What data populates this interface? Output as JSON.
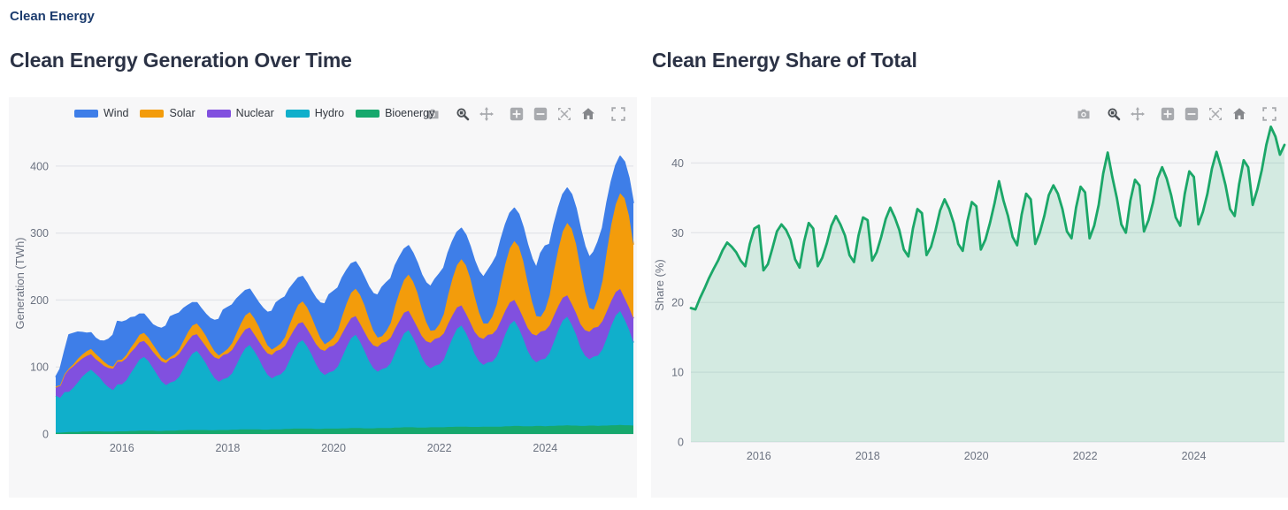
{
  "page": {
    "breadcrumb": "Clean Energy"
  },
  "modebar": {
    "icons": [
      "camera-icon",
      "zoom-icon",
      "pan-icon",
      "zoom-in-icon",
      "zoom-out-icon",
      "autoscale-icon",
      "home-icon",
      "fullscreen-icon"
    ],
    "active_tool": "zoom"
  },
  "chart_data": [
    {
      "type": "area",
      "stacked": true,
      "title": "Clean Energy Generation Over Time",
      "xlabel": "",
      "ylabel": "Generation (TWh)",
      "x_range": {
        "start": "2014-10",
        "end": "2025-09",
        "freq": "monthly"
      },
      "x_tick_labels": [
        "2016",
        "2018",
        "2020",
        "2022",
        "2024"
      ],
      "ylim": [
        0,
        450
      ],
      "yticks": [
        0,
        100,
        200,
        300,
        400
      ],
      "grid": true,
      "legend_position": "top-left",
      "legend": [
        {
          "label": "Wind",
          "color": "#3e7ee8"
        },
        {
          "label": "Solar",
          "color": "#f39c0b"
        },
        {
          "label": "Nuclear",
          "color": "#8150df"
        },
        {
          "label": "Hydro",
          "color": "#10afcb"
        },
        {
          "label": "Bioenergy",
          "color": "#16a86d"
        }
      ],
      "series": [
        {
          "name": "Bioenergy",
          "color": "#16a86d",
          "values": [
            2,
            2,
            2.5,
            3,
            3,
            3,
            3.5,
            3.5,
            4,
            4,
            4,
            3.5,
            3.5,
            3.5,
            4,
            4,
            4,
            4.5,
            4.5,
            5,
            5,
            5,
            5,
            4.5,
            4.5,
            5,
            5,
            5,
            5.5,
            5.5,
            6,
            6,
            6,
            6,
            6,
            5.5,
            5.5,
            6,
            6,
            6,
            6.5,
            6.5,
            7,
            7,
            7,
            7,
            7,
            6.5,
            6.5,
            7,
            7,
            7,
            7.5,
            7.5,
            8,
            8,
            8,
            8,
            8,
            7.5,
            7.5,
            8,
            8,
            8,
            8,
            8.5,
            8.5,
            9,
            9,
            9,
            8.5,
            8.5,
            8.5,
            9,
            9,
            9,
            9,
            9.5,
            9.5,
            10,
            10,
            10,
            9.5,
            9.5,
            9.5,
            10,
            10,
            10,
            10,
            10.5,
            10.5,
            11,
            11,
            11,
            10.5,
            10.5,
            10.5,
            11,
            11,
            11,
            11,
            11,
            11.5,
            11.5,
            12,
            12,
            11.5,
            11.5,
            11.5,
            12,
            12,
            11.5,
            12,
            12,
            12.5,
            12.5,
            13,
            12.5,
            12.5,
            12,
            12,
            12.5,
            12.5,
            12,
            12.5,
            12.5,
            13,
            13,
            13.5,
            13,
            13,
            12.5
          ]
        },
        {
          "name": "Hydro",
          "color": "#10afcb",
          "values": [
            55,
            52,
            60,
            60,
            66,
            74,
            82,
            88,
            92,
            86,
            80,
            72,
            66,
            62,
            70,
            70,
            76,
            86,
            96,
            106,
            110,
            104,
            94,
            84,
            74,
            68,
            72,
            74,
            80,
            92,
            104,
            114,
            118,
            110,
            100,
            88,
            78,
            72,
            76,
            78,
            84,
            97,
            110,
            121,
            126,
            117,
            106,
            93,
            82,
            76,
            80,
            82,
            88,
            102,
            116,
            128,
            132,
            123,
            111,
            97,
            86,
            80,
            84,
            86,
            93,
            107,
            122,
            134,
            139,
            129,
            116,
            101,
            90,
            84,
            88,
            90,
            97,
            112,
            127,
            140,
            145,
            134,
            121,
            105,
            94,
            88,
            92,
            94,
            101,
            117,
            133,
            146,
            151,
            140,
            126,
            109,
            98,
            92,
            96,
            97,
            105,
            121,
            138,
            152,
            157,
            146,
            131,
            113,
            101,
            95,
            99,
            101,
            109,
            126,
            143,
            157,
            162,
            151,
            136,
            117,
            105,
            99,
            103,
            105,
            114,
            131,
            149,
            164,
            170,
            158,
            143,
            124
          ]
        },
        {
          "name": "Nuclear",
          "color": "#8150df",
          "values": [
            12,
            18,
            26,
            33,
            32,
            30,
            27,
            25,
            23,
            22,
            23,
            26,
            29,
            32,
            34,
            34,
            33,
            31,
            28,
            26,
            24,
            23,
            24,
            27,
            30,
            33,
            35,
            35,
            34,
            32,
            29,
            27,
            25,
            24,
            25,
            28,
            31,
            34,
            36,
            36,
            35,
            33,
            30,
            28,
            26,
            25,
            26,
            29,
            32,
            35,
            37,
            37,
            36,
            34,
            31,
            29,
            27,
            26,
            27,
            30,
            33,
            36,
            38,
            38,
            37,
            35,
            32,
            30,
            28,
            27,
            28,
            31,
            34,
            37,
            39,
            39,
            38,
            36,
            33,
            31,
            29,
            28,
            29,
            32,
            35,
            38,
            40,
            40,
            39,
            37,
            34,
            32,
            30,
            29,
            30,
            33,
            36,
            39,
            41,
            41,
            40,
            38,
            35,
            33,
            31,
            30,
            31,
            34,
            37,
            40,
            42,
            42,
            41,
            39,
            36,
            34,
            32,
            31,
            32,
            35,
            38,
            41,
            43,
            43,
            42,
            40,
            37,
            35,
            33,
            32,
            33,
            36
          ]
        },
        {
          "name": "Solar",
          "color": "#f39c0b",
          "values": [
            2,
            1,
            1,
            2,
            3,
            5,
            6,
            7,
            8,
            8,
            7,
            6,
            4,
            3,
            2,
            3,
            5,
            7,
            9,
            11,
            12,
            12,
            11,
            9,
            6,
            4,
            3,
            5,
            7,
            10,
            13,
            15,
            16,
            17,
            16,
            13,
            9,
            5,
            4,
            7,
            10,
            14,
            18,
            21,
            23,
            24,
            22,
            18,
            12,
            8,
            6,
            9,
            13,
            19,
            24,
            28,
            31,
            32,
            29,
            24,
            17,
            10,
            8,
            12,
            17,
            26,
            33,
            38,
            41,
            43,
            40,
            32,
            22,
            14,
            10,
            16,
            22,
            34,
            43,
            49,
            54,
            56,
            52,
            41,
            29,
            18,
            13,
            20,
            29,
            43,
            55,
            63,
            69,
            72,
            66,
            53,
            37,
            23,
            17,
            26,
            37,
            55,
            70,
            81,
            88,
            92,
            85,
            68,
            48,
            29,
            22,
            31,
            45,
            67,
            85,
            99,
            108,
            112,
            103,
            83,
            58,
            36,
            27,
            42,
            60,
            90,
            114,
            131,
            143,
            149,
            137,
            110
          ]
        },
        {
          "name": "Wind",
          "color": "#3e7ee8",
          "values": [
            14,
            24,
            34,
            50,
            46,
            40,
            33,
            27,
            24,
            23,
            25,
            31,
            39,
            47,
            58,
            56,
            51,
            45,
            37,
            31,
            28,
            27,
            29,
            35,
            43,
            51,
            60,
            59,
            54,
            48,
            40,
            34,
            31,
            30,
            32,
            38,
            46,
            54,
            63,
            62,
            57,
            51,
            43,
            37,
            34,
            33,
            35,
            41,
            49,
            57,
            66,
            66,
            60,
            54,
            46,
            40,
            37,
            36,
            38,
            44,
            52,
            60,
            70,
            69,
            63,
            57,
            49,
            43,
            40,
            39,
            41,
            47,
            55,
            63,
            73,
            72,
            66,
            60,
            52,
            46,
            43,
            42,
            44,
            50,
            58,
            66,
            76,
            75,
            69,
            63,
            55,
            49,
            46,
            45,
            47,
            53,
            61,
            69,
            79,
            79,
            73,
            66,
            58,
            52,
            49,
            48,
            50,
            56,
            64,
            72,
            95,
            95,
            76,
            69,
            61,
            55,
            52,
            51,
            53,
            59,
            67,
            75,
            86,
            85,
            79,
            72,
            64,
            58,
            55,
            54,
            56,
            62
          ]
        }
      ]
    },
    {
      "type": "line",
      "title": "Clean Energy Share of Total",
      "xlabel": "",
      "ylabel": "Share (%)",
      "x_range": {
        "start": "2014-10",
        "end": "2025-09",
        "freq": "monthly"
      },
      "x_tick_labels": [
        "2016",
        "2018",
        "2020",
        "2022",
        "2024"
      ],
      "ylim": [
        0,
        45
      ],
      "yticks": [
        0,
        10,
        20,
        30,
        40
      ],
      "grid": true,
      "color": "#1ba768",
      "fill_color": "rgba(27,167,104,0.16)",
      "values": [
        19.2,
        19,
        20.6,
        22,
        23.5,
        24.8,
        26,
        27.5,
        28.6,
        28,
        27.2,
        26,
        25.2,
        28.4,
        30.6,
        31,
        24.6,
        25.5,
        27.8,
        30.2,
        31.2,
        30.4,
        29,
        26.2,
        25,
        28.8,
        31.4,
        30.6,
        25.2,
        26.4,
        28.5,
        31,
        32.4,
        31.2,
        29.6,
        26.8,
        25.8,
        29.6,
        32.2,
        31.8,
        26,
        27.2,
        29.4,
        32,
        33.6,
        32.2,
        30.4,
        27.6,
        26.6,
        30.6,
        33.4,
        32.8,
        26.8,
        28,
        30.4,
        33.2,
        34.8,
        33.4,
        31.4,
        28.4,
        27.4,
        31.6,
        34.4,
        33.8,
        27.6,
        29,
        31.4,
        34.2,
        37.4,
        34.6,
        32.4,
        29.4,
        28.2,
        32.6,
        35.6,
        34.8,
        28.4,
        30,
        32.4,
        35.4,
        36.8,
        35.6,
        33.4,
        30.2,
        29.2,
        33.6,
        36.6,
        35.8,
        29.2,
        31,
        34,
        38.5,
        41.5,
        38,
        35,
        31.2,
        30,
        34.6,
        37.6,
        36.8,
        30.2,
        31.8,
        34.4,
        37.8,
        39.4,
        37.8,
        35.4,
        32.2,
        31,
        35.6,
        38.8,
        38,
        31.2,
        33,
        35.6,
        39.2,
        41.6,
        39.4,
        36.8,
        33.4,
        32.4,
        37,
        40.4,
        39.4,
        34,
        36.2,
        39,
        42.6,
        45.2,
        43.8,
        41.2,
        42.6
      ]
    }
  ]
}
